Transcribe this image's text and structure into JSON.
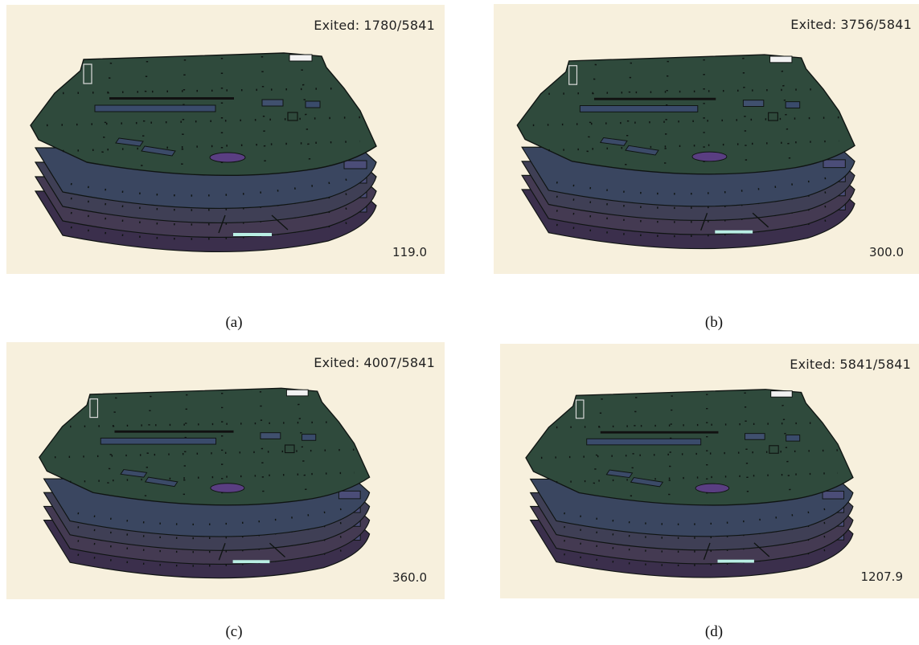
{
  "panels": [
    {
      "id": "a",
      "exited_label": "Exited:",
      "exited_value": "1780/5841",
      "time": "119.0",
      "caption": "(a)"
    },
    {
      "id": "b",
      "exited_label": "Exited:",
      "exited_value": "3756/5841",
      "time": "300.0",
      "caption": "(b)"
    },
    {
      "id": "c",
      "exited_label": "Exited:",
      "exited_value": "4007/5841",
      "time": "360.0",
      "caption": "(c)"
    },
    {
      "id": "d",
      "exited_label": "Exited:",
      "exited_value": "5841/5841",
      "time": "1207.9",
      "caption": "(d)"
    }
  ],
  "colors": {
    "background": "#f7f0dd",
    "deck_top": "#2f4a3c",
    "deck_second": "#3a4660",
    "deck_third": "#3f3f55",
    "deck_fourth": "#443a52",
    "deck_bottom": "#3b2f4c",
    "outline": "#0f1412",
    "highlight": "#b9efe4"
  }
}
